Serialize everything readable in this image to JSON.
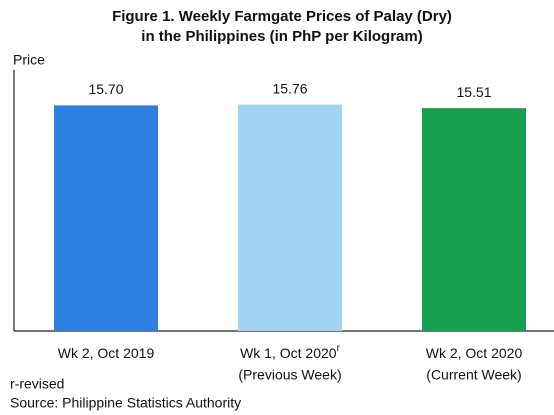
{
  "chart_data": {
    "type": "bar",
    "title": [
      "Figure 1. Weekly Farmgate Prices of Palay (Dry)",
      "in the Philippines (in PhP per Kilogram)"
    ],
    "ylabel": "Price",
    "categories": [
      "Wk 2, Oct 2019",
      "Wk 1, Oct 2020",
      "Wk 2, Oct 2020"
    ],
    "category_marks": [
      null,
      "r",
      null
    ],
    "category_notes": [
      null,
      "(Previous Week)",
      "(Current Week)"
    ],
    "values": [
      15.7,
      15.76,
      15.51
    ],
    "value_labels": [
      "15.70",
      "15.76",
      "15.51"
    ],
    "colors": [
      "#2e7fe2",
      "#a3d3f2",
      "#16a04e"
    ],
    "ylim": [
      0,
      19
    ],
    "footnotes": [
      "r-revised",
      "Source: Philippine Statistics Authority"
    ]
  }
}
